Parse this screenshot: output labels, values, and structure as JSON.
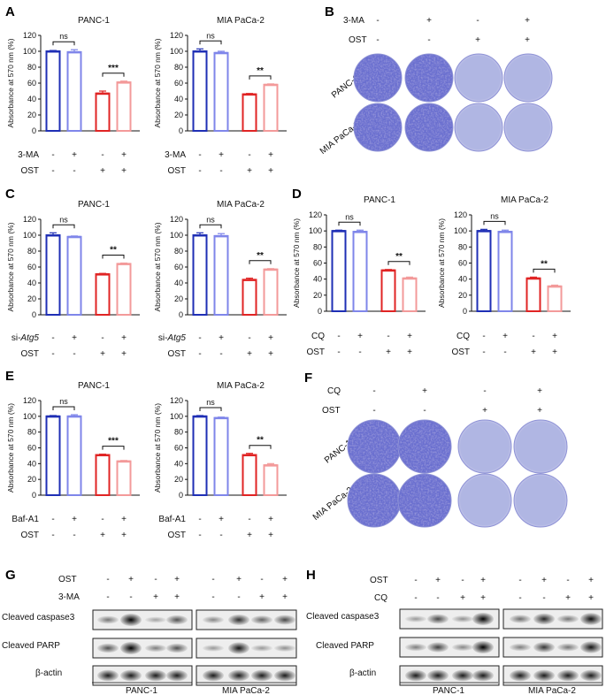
{
  "figure": {
    "panel_labels": [
      "A",
      "B",
      "C",
      "D",
      "E",
      "F",
      "G",
      "H"
    ],
    "colors": {
      "dark_blue": "#1f2fb5",
      "light_blue": "#7f86ea",
      "red": "#e02424",
      "pink": "#f39a9a",
      "crystal_violet": "#5b5fc0",
      "plate_light": "#b9bde6"
    },
    "ylabel": "Absorbance at 570 nm (%)",
    "sign_plus": "+",
    "sign_minus": "-",
    "cell_lines": {
      "panc": "PANC-1",
      "mia": "MIA PaCa-2"
    },
    "row_labels": {
      "three_ma": "3-MA",
      "ost": "OST",
      "si_prefix": "si-",
      "si_gene": "Atg5",
      "cq": "CQ",
      "baf": "Baf-A1"
    },
    "plates": {
      "B": {
        "row1": [
          "-",
          "+",
          "-",
          "+"
        ],
        "row2": [
          "-",
          "-",
          "+",
          "+"
        ]
      },
      "F": {
        "row1": [
          "-",
          "+",
          "-",
          "+"
        ],
        "row2": [
          "-",
          "-",
          "+",
          "+"
        ]
      }
    },
    "western": {
      "G": {
        "row_OST": [
          "-",
          "+",
          "-",
          "+",
          "-",
          "+",
          "-",
          "+"
        ],
        "row_treat": [
          "-",
          "-",
          "+",
          "+",
          "-",
          "-",
          "+",
          "+"
        ],
        "bands": [
          "Cleaved caspase3",
          "Cleaved PARP",
          "β-actin"
        ]
      },
      "H": {
        "row_OST": [
          "-",
          "+",
          "-",
          "+",
          "-",
          "+",
          "-",
          "+"
        ],
        "row_treat": [
          "-",
          "-",
          "+",
          "+",
          "-",
          "-",
          "+",
          "+"
        ],
        "bands": [
          "Cleaved caspase3",
          "Cleaved PARP",
          "β-actin"
        ]
      }
    }
  },
  "chart_data": [
    {
      "type": "bar",
      "panel": "A",
      "title": "PANC-1",
      "ylabel": "Absorbance at 570 nm (%)",
      "ylim": [
        0,
        120
      ],
      "yticks": [
        0,
        20,
        40,
        60,
        80,
        100,
        120
      ],
      "values": [
        100,
        99,
        47,
        61
      ],
      "errors": [
        1,
        3,
        3,
        1.5
      ],
      "row1_label": "3-MA",
      "row1_signs": [
        "-",
        "+",
        "-",
        "+"
      ],
      "row2_label": "OST",
      "row2_signs": [
        "-",
        "-",
        "+",
        "+"
      ],
      "sig": [
        {
          "label": "ns",
          "from": 0,
          "to": 1
        },
        {
          "label": "***",
          "from": 2,
          "to": 3
        }
      ]
    },
    {
      "type": "bar",
      "panel": "A",
      "title": "MIA PaCa-2",
      "ylabel": "Absorbance at 570 nm (%)",
      "ylim": [
        0,
        120
      ],
      "yticks": [
        0,
        20,
        40,
        60,
        80,
        100,
        120
      ],
      "values": [
        100,
        98,
        46,
        58
      ],
      "errors": [
        3,
        2,
        1,
        1
      ],
      "row1_label": "3-MA",
      "row1_signs": [
        "-",
        "+",
        "-",
        "+"
      ],
      "row2_label": "OST",
      "row2_signs": [
        "-",
        "-",
        "+",
        "+"
      ],
      "sig": [
        {
          "label": "ns",
          "from": 0,
          "to": 1
        },
        {
          "label": "**",
          "from": 2,
          "to": 3
        }
      ]
    },
    {
      "type": "bar",
      "panel": "C",
      "title": "PANC-1",
      "ylabel": "Absorbance at 570 nm (%)",
      "ylim": [
        0,
        120
      ],
      "yticks": [
        0,
        20,
        40,
        60,
        80,
        100,
        120
      ],
      "values": [
        100,
        98,
        51,
        64
      ],
      "errors": [
        3,
        1,
        1,
        1
      ],
      "row1_label": "si-Atg5",
      "row1_signs": [
        "-",
        "+",
        "-",
        "+"
      ],
      "row2_label": "OST",
      "row2_signs": [
        "-",
        "-",
        "+",
        "+"
      ],
      "sig": [
        {
          "label": "ns",
          "from": 0,
          "to": 1
        },
        {
          "label": "**",
          "from": 2,
          "to": 3
        }
      ]
    },
    {
      "type": "bar",
      "panel": "C",
      "title": "MIA PaCa-2",
      "ylabel": "Absorbance at 570 nm (%)",
      "ylim": [
        0,
        120
      ],
      "yticks": [
        0,
        20,
        40,
        60,
        80,
        100,
        120
      ],
      "values": [
        100,
        99,
        44,
        57
      ],
      "errors": [
        3,
        3,
        2,
        1
      ],
      "row1_label": "si-Atg5",
      "row1_signs": [
        "-",
        "+",
        "-",
        "+"
      ],
      "row2_label": "OST",
      "row2_signs": [
        "-",
        "-",
        "+",
        "+"
      ],
      "sig": [
        {
          "label": "ns",
          "from": 0,
          "to": 1
        },
        {
          "label": "**",
          "from": 2,
          "to": 3
        }
      ]
    },
    {
      "type": "bar",
      "panel": "D",
      "title": "PANC-1",
      "ylabel": "Absorbance at 570 nm (%)",
      "ylim": [
        0,
        120
      ],
      "yticks": [
        0,
        20,
        40,
        60,
        80,
        100,
        120
      ],
      "values": [
        100,
        99,
        51,
        41
      ],
      "errors": [
        1,
        2,
        1,
        1.5
      ],
      "row1_label": "CQ",
      "row1_signs": [
        "-",
        "+",
        "-",
        "+"
      ],
      "row2_label": "OST",
      "row2_signs": [
        "-",
        "-",
        "+",
        "+"
      ],
      "sig": [
        {
          "label": "ns",
          "from": 0,
          "to": 1
        },
        {
          "label": "**",
          "from": 2,
          "to": 3
        }
      ]
    },
    {
      "type": "bar",
      "panel": "D",
      "title": "MIA PaCa-2",
      "ylabel": "Absorbance at 570 nm (%)",
      "ylim": [
        0,
        120
      ],
      "yticks": [
        0,
        20,
        40,
        60,
        80,
        100,
        120
      ],
      "values": [
        100,
        99,
        41,
        31
      ],
      "errors": [
        2,
        2,
        1.5,
        1.5
      ],
      "row1_label": "CQ",
      "row1_signs": [
        "-",
        "+",
        "-",
        "+"
      ],
      "row2_label": "OST",
      "row2_signs": [
        "-",
        "-",
        "+",
        "+"
      ],
      "sig": [
        {
          "label": "ns",
          "from": 0,
          "to": 1
        },
        {
          "label": "**",
          "from": 2,
          "to": 3
        }
      ]
    },
    {
      "type": "bar",
      "panel": "E",
      "title": "PANC-1",
      "ylabel": "Absorbance at 570 nm (%)",
      "ylim": [
        0,
        120
      ],
      "yticks": [
        0,
        20,
        40,
        60,
        80,
        100,
        120
      ],
      "values": [
        100,
        100,
        51,
        43
      ],
      "errors": [
        1,
        2,
        1,
        1
      ],
      "row1_label": "Baf-A1",
      "row1_signs": [
        "-",
        "+",
        "-",
        "+"
      ],
      "row2_label": "OST",
      "row2_signs": [
        "-",
        "-",
        "+",
        "+"
      ],
      "sig": [
        {
          "label": "ns",
          "from": 0,
          "to": 1
        },
        {
          "label": "***",
          "from": 2,
          "to": 3
        }
      ]
    },
    {
      "type": "bar",
      "panel": "E",
      "title": "MIA PaCa-2",
      "ylabel": "Absorbance at 570 nm (%)",
      "ylim": [
        0,
        120
      ],
      "yticks": [
        0,
        20,
        40,
        60,
        80,
        100,
        120
      ],
      "values": [
        100,
        98,
        51,
        38
      ],
      "errors": [
        1,
        1,
        2,
        2
      ],
      "row1_label": "Baf-A1",
      "row1_signs": [
        "-",
        "+",
        "-",
        "+"
      ],
      "row2_label": "OST",
      "row2_signs": [
        "-",
        "-",
        "+",
        "+"
      ],
      "sig": [
        {
          "label": "ns",
          "from": 0,
          "to": 1
        },
        {
          "label": "**",
          "from": 2,
          "to": 3
        }
      ]
    }
  ]
}
